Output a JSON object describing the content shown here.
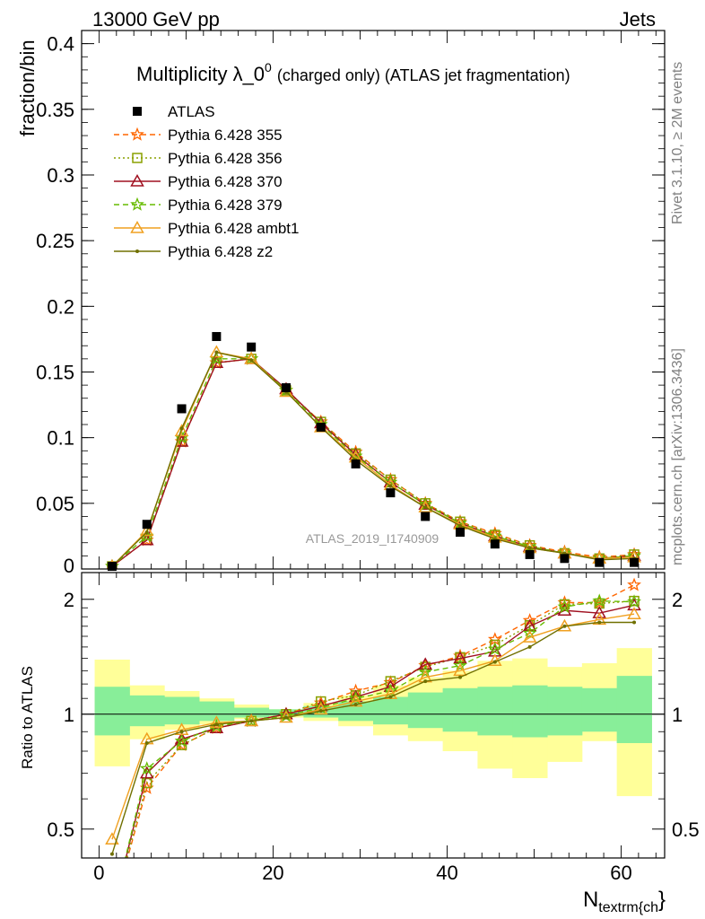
{
  "header": {
    "left": "13000 GeV pp",
    "right": "Jets"
  },
  "side_texts": {
    "rivet": "Rivet 3.1.10, ≥ 2M events",
    "mcplots": "mcplots.cern.ch [arXiv:1306.3436]"
  },
  "chart_data": [
    {
      "type": "scatter",
      "panel": "main",
      "title_main": "Multiplicity λ_0",
      "title_sup": "0",
      "title_rest": "(charged only) (ATLAS jet fragmentation)",
      "ylabel": "fraction/bin",
      "watermark": "ATLAS_2019_I1740909",
      "xlim": [
        -2,
        65
      ],
      "ylim": [
        0,
        0.41
      ],
      "y_ticks": [
        0,
        0.05,
        0.1,
        0.15,
        0.2,
        0.25,
        0.3,
        0.35,
        0.4
      ],
      "y_tick_labels": [
        "0",
        "0.05",
        "0.1",
        "0.15",
        "0.2",
        "0.25",
        "0.3",
        "0.35",
        "0.4"
      ],
      "x": [
        1.5,
        5.5,
        9.5,
        13.5,
        17.5,
        21.5,
        25.5,
        29.5,
        33.5,
        37.5,
        41.5,
        45.5,
        49.5,
        53.5,
        57.5,
        61.5
      ],
      "data": {
        "name": "ATLAS",
        "values": [
          0.002,
          0.034,
          0.122,
          0.177,
          0.169,
          0.138,
          0.108,
          0.08,
          0.058,
          0.04,
          0.028,
          0.019,
          0.011,
          0.008,
          0.005,
          0.005
        ]
      },
      "series": [
        {
          "name": "Pythia 6.428 355",
          "color": "#ff6600",
          "marker": "star",
          "dash": "6,4",
          "values": [
            0.002,
            0.022,
            0.097,
            0.157,
            0.16,
            0.136,
            0.112,
            0.089,
            0.068,
            0.05,
            0.036,
            0.027,
            0.018,
            0.013,
            0.009,
            0.011
          ]
        },
        {
          "name": "Pythia 6.428 356",
          "color": "#8aa000",
          "marker": "open-square",
          "dash": "2,3",
          "values": [
            0.002,
            0.022,
            0.097,
            0.157,
            0.16,
            0.136,
            0.112,
            0.088,
            0.068,
            0.05,
            0.036,
            0.026,
            0.018,
            0.012,
            0.008,
            0.011
          ]
        },
        {
          "name": "Pythia 6.428 370",
          "color": "#a01020",
          "marker": "open-triangle",
          "dash": "",
          "values": [
            0.002,
            0.022,
            0.097,
            0.157,
            0.16,
            0.137,
            0.111,
            0.087,
            0.066,
            0.049,
            0.035,
            0.025,
            0.017,
            0.012,
            0.008,
            0.01
          ]
        },
        {
          "name": "Pythia 6.428 379",
          "color": "#66bb00",
          "marker": "star",
          "dash": "6,4",
          "values": [
            0.002,
            0.025,
            0.1,
            0.16,
            0.16,
            0.136,
            0.11,
            0.086,
            0.066,
            0.049,
            0.035,
            0.025,
            0.017,
            0.012,
            0.008,
            0.01
          ]
        },
        {
          "name": "Pythia 6.428 ambt1",
          "color": "#f0a020",
          "marker": "open-triangle",
          "dash": "",
          "values": [
            0.002,
            0.029,
            0.105,
            0.165,
            0.16,
            0.135,
            0.108,
            0.085,
            0.064,
            0.047,
            0.034,
            0.024,
            0.016,
            0.012,
            0.008,
            0.009
          ]
        },
        {
          "name": "Pythia 6.428 z2",
          "color": "#707000",
          "marker": "dot",
          "dash": "",
          "values": [
            0.002,
            0.028,
            0.107,
            0.165,
            0.159,
            0.135,
            0.108,
            0.083,
            0.063,
            0.047,
            0.033,
            0.023,
            0.016,
            0.012,
            0.007,
            0.008
          ]
        }
      ]
    },
    {
      "type": "line",
      "panel": "ratio",
      "ylabel": "Ratio to ATLAS",
      "xlabel": "N",
      "xlabel_sub": "textrm{ch",
      "xlabel_tail": "}",
      "scale": "log",
      "xlim": [
        -2,
        65
      ],
      "ylim": [
        0.42,
        2.35
      ],
      "x_ticks": [
        0,
        20,
        40,
        60
      ],
      "x_tick_labels": [
        "0",
        "20",
        "40",
        "60"
      ],
      "y_ticks": [
        0.5,
        1,
        2
      ],
      "y_tick_labels": [
        "0.5",
        "1",
        "2"
      ],
      "bin_edges": [
        -0.5,
        3.5,
        7.5,
        11.5,
        15.5,
        19.5,
        23.5,
        27.5,
        31.5,
        35.5,
        39.5,
        43.5,
        47.5,
        51.5,
        55.5,
        59.5,
        63.5
      ],
      "band_inner": [
        [
          0.88,
          1.18
        ],
        [
          0.93,
          1.12
        ],
        [
          0.94,
          1.11
        ],
        [
          0.96,
          1.08
        ],
        [
          0.98,
          1.04
        ],
        [
          0.99,
          1.03
        ],
        [
          0.98,
          1.05
        ],
        [
          0.96,
          1.08
        ],
        [
          0.94,
          1.11
        ],
        [
          0.92,
          1.14
        ],
        [
          0.9,
          1.17
        ],
        [
          0.88,
          1.18
        ],
        [
          0.87,
          1.19
        ],
        [
          0.88,
          1.18
        ],
        [
          0.9,
          1.17
        ],
        [
          0.84,
          1.26
        ]
      ],
      "band_outer": [
        [
          0.73,
          1.39
        ],
        [
          0.86,
          1.19
        ],
        [
          0.91,
          1.15
        ],
        [
          0.94,
          1.1
        ],
        [
          0.97,
          1.06
        ],
        [
          0.98,
          1.03
        ],
        [
          0.96,
          1.07
        ],
        [
          0.93,
          1.12
        ],
        [
          0.88,
          1.19
        ],
        [
          0.85,
          1.25
        ],
        [
          0.8,
          1.3
        ],
        [
          0.72,
          1.38
        ],
        [
          0.68,
          1.4
        ],
        [
          0.75,
          1.33
        ],
        [
          0.85,
          1.36
        ],
        [
          0.61,
          1.49
        ]
      ],
      "x": [
        1.5,
        5.5,
        9.5,
        13.5,
        17.5,
        21.5,
        25.5,
        29.5,
        33.5,
        37.5,
        41.5,
        45.5,
        49.5,
        53.5,
        57.5,
        61.5
      ],
      "series": [
        {
          "name": "Pythia 6.428 355",
          "values": [
            0.3,
            0.64,
            0.83,
            0.92,
            0.96,
            1.0,
            1.07,
            1.15,
            1.21,
            1.34,
            1.42,
            1.57,
            1.76,
            1.96,
            1.96,
            2.18
          ]
        },
        {
          "name": "Pythia 6.428 356",
          "values": [
            0.3,
            0.66,
            0.83,
            0.92,
            0.96,
            1.0,
            1.08,
            1.12,
            1.22,
            1.33,
            1.41,
            1.52,
            1.71,
            1.94,
            1.95,
            1.98
          ]
        },
        {
          "name": "Pythia 6.428 370",
          "values": [
            0.3,
            0.7,
            0.86,
            0.92,
            0.96,
            1.0,
            1.05,
            1.11,
            1.18,
            1.35,
            1.4,
            1.46,
            1.7,
            1.87,
            1.84,
            1.93
          ]
        },
        {
          "name": "Pythia 6.428 379",
          "values": [
            0.3,
            0.72,
            0.85,
            0.93,
            0.96,
            0.99,
            1.04,
            1.1,
            1.15,
            1.29,
            1.34,
            1.48,
            1.63,
            1.91,
            1.98,
            1.97
          ]
        },
        {
          "name": "Pythia 6.428 ambt1",
          "values": [
            0.47,
            0.86,
            0.91,
            0.95,
            0.96,
            0.98,
            1.03,
            1.08,
            1.13,
            1.25,
            1.3,
            1.38,
            1.59,
            1.7,
            1.77,
            1.83
          ]
        },
        {
          "name": "Pythia 6.428 z2",
          "values": [
            0.43,
            0.84,
            0.9,
            0.94,
            0.96,
            0.98,
            1.02,
            1.06,
            1.11,
            1.22,
            1.25,
            1.37,
            1.5,
            1.7,
            1.74,
            1.74
          ]
        }
      ]
    }
  ]
}
